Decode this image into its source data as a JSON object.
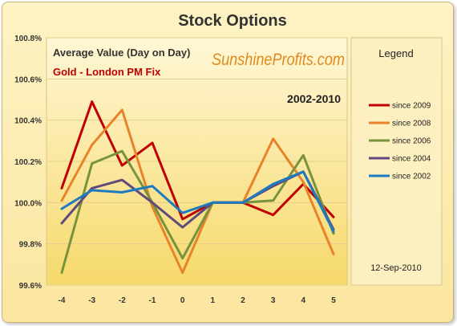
{
  "chart_data": {
    "type": "line",
    "title": "Stock Options",
    "subtitle": "Average Value (Day on Day)",
    "series_group": "Gold - London PM Fix",
    "period": "2002-2010",
    "brand": "SunshineProfits.com",
    "legend_title": "Legend",
    "legend_position": "right",
    "date": "12-Sep-2010",
    "x": [
      -4,
      -3,
      -2,
      -1,
      0,
      1,
      2,
      3,
      4,
      5
    ],
    "x_tick_labels": [
      "-4",
      "-3",
      "-2",
      "-1",
      "0",
      "1",
      "2",
      "3",
      "4",
      "5"
    ],
    "y_tick_labels": [
      "99.6%",
      "99.8%",
      "100.0%",
      "100.2%",
      "100.4%",
      "100.6%",
      "100.8%"
    ],
    "ylim": [
      99.6,
      100.8
    ],
    "grid": true,
    "series": [
      {
        "name": "since 2009",
        "color": "#c00000",
        "values": [
          100.07,
          100.49,
          100.18,
          100.29,
          99.92,
          100.0,
          100.0,
          99.94,
          100.09,
          99.93
        ]
      },
      {
        "name": "since 2008",
        "color": "#e8832a",
        "values": [
          100.01,
          100.28,
          100.45,
          99.98,
          99.66,
          100.0,
          100.0,
          100.31,
          100.1,
          99.75
        ]
      },
      {
        "name": "since 2006",
        "color": "#77933c",
        "values": [
          99.66,
          100.19,
          100.25,
          100.0,
          99.73,
          100.0,
          100.0,
          100.01,
          100.23,
          99.85
        ]
      },
      {
        "name": "since 2004",
        "color": "#604a7b",
        "values": [
          99.9,
          100.07,
          100.11,
          100.0,
          99.88,
          100.0,
          100.0,
          100.08,
          100.15,
          99.87
        ]
      },
      {
        "name": "since 2002",
        "color": "#1f7bc0",
        "values": [
          99.97,
          100.06,
          100.05,
          100.08,
          99.95,
          100.0,
          100.0,
          100.09,
          100.15,
          99.86
        ]
      }
    ]
  }
}
